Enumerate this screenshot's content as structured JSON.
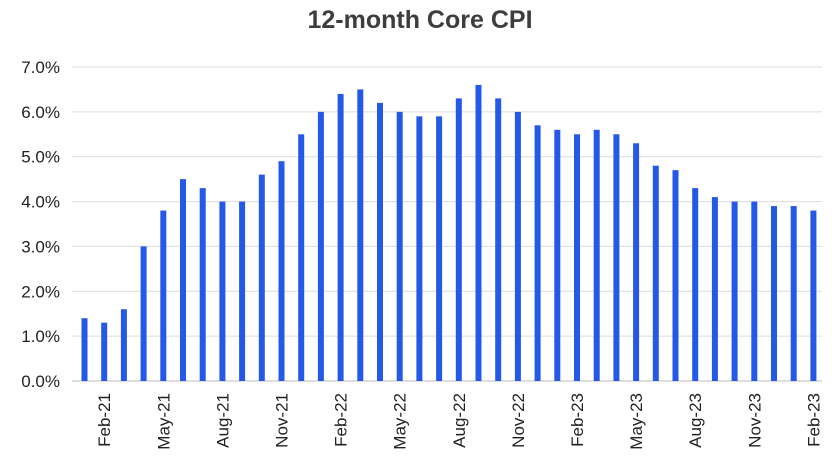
{
  "chart_data": {
    "type": "bar",
    "title": "12-month Core CPI",
    "xlabel": "",
    "ylabel": "",
    "ylim": [
      0,
      7
    ],
    "yticks": [
      "0.0%",
      "1.0%",
      "2.0%",
      "3.0%",
      "4.0%",
      "5.0%",
      "6.0%",
      "7.0%"
    ],
    "grid": true,
    "bar_color": "#2458e6",
    "categories": [
      "Jan-21",
      "Feb-21",
      "Mar-21",
      "Apr-21",
      "May-21",
      "Jun-21",
      "Jul-21",
      "Aug-21",
      "Sep-21",
      "Oct-21",
      "Nov-21",
      "Dec-21",
      "Jan-22",
      "Feb-22",
      "Mar-22",
      "Apr-22",
      "May-22",
      "Jun-22",
      "Jul-22",
      "Aug-22",
      "Sep-22",
      "Oct-22",
      "Nov-22",
      "Dec-22",
      "Jan-23",
      "Feb-23",
      "Mar-23",
      "Apr-23",
      "May-23",
      "Jun-23",
      "Jul-23",
      "Aug-23",
      "Sep-23",
      "Oct-23",
      "Nov-23",
      "Dec-23",
      "Jan-24",
      "Feb-23"
    ],
    "tick_labels": [
      {
        "index": 1,
        "label": "Feb-21"
      },
      {
        "index": 4,
        "label": "May-21"
      },
      {
        "index": 7,
        "label": "Aug-21"
      },
      {
        "index": 10,
        "label": "Nov-21"
      },
      {
        "index": 13,
        "label": "Feb-22"
      },
      {
        "index": 16,
        "label": "May-22"
      },
      {
        "index": 19,
        "label": "Aug-22"
      },
      {
        "index": 22,
        "label": "Nov-22"
      },
      {
        "index": 25,
        "label": "Feb-23"
      },
      {
        "index": 28,
        "label": "May-23"
      },
      {
        "index": 31,
        "label": "Aug-23"
      },
      {
        "index": 34,
        "label": "Nov-23"
      },
      {
        "index": 37,
        "label": "Feb-23"
      }
    ],
    "values": [
      1.4,
      1.3,
      1.6,
      3.0,
      3.8,
      4.5,
      4.3,
      4.0,
      4.0,
      4.6,
      4.9,
      5.5,
      6.0,
      6.4,
      6.5,
      6.2,
      6.0,
      5.9,
      5.9,
      6.3,
      6.6,
      6.3,
      6.0,
      5.7,
      5.6,
      5.5,
      5.6,
      5.5,
      5.3,
      4.8,
      4.7,
      4.3,
      4.1,
      4.0,
      4.0,
      3.9,
      3.9,
      3.8
    ]
  }
}
